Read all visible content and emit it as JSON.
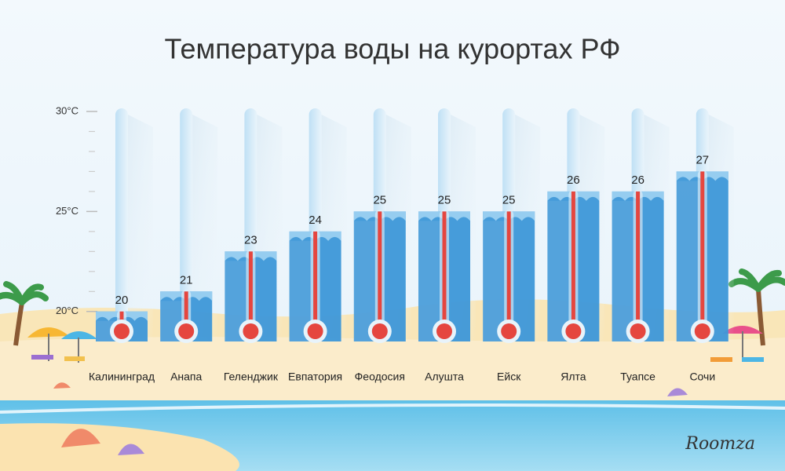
{
  "chart_data": {
    "type": "bar",
    "title": "Температура воды на курортах РФ",
    "categories": [
      "Калининград",
      "Анапа",
      "Геленджик",
      "Евпатория",
      "Феодосия",
      "Алушта",
      "Ейск",
      "Ялта",
      "Туапсе",
      "Сочи"
    ],
    "values": [
      20,
      21,
      23,
      24,
      25,
      25,
      25,
      26,
      26,
      27
    ],
    "color": "#3d97d8",
    "ylim": [
      18.5,
      30
    ],
    "yticks": [
      {
        "value": 20,
        "label": "20°C"
      },
      {
        "value": 25,
        "label": "25°C"
      },
      {
        "value": 30,
        "label": "30°C"
      }
    ],
    "yticks_minor": [
      21,
      22,
      23,
      24,
      26,
      27,
      28,
      29
    ],
    "brand": "Roomza"
  }
}
